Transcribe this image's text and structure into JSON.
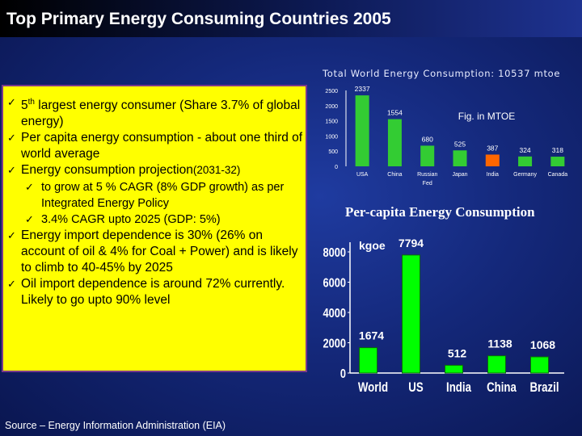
{
  "slide": {
    "title": "Top Primary Energy Consuming Countries 2005",
    "source": "Source – Energy Information Administration (EIA)"
  },
  "textbox": {
    "b1": {
      "pre": "5",
      "sup": "th",
      "post": " largest energy consumer (Share 3.7% of global energy)"
    },
    "b2": "Per capita energy consumption - about  one third of world average",
    "b3": {
      "pre": "Energy consumption projection",
      "paren": "(2031-32)"
    },
    "b3_sub1": "to grow at 5 % CAGR (8% GDP growth) as per Integrated Energy Policy",
    "b3_sub2": "3.4% CAGR upto 2025 (GDP: 5%)",
    "b4": "Energy import dependence is 30% (26% on account of oil & 4% for Coal + Power) and is likely to climb to 40-45% by 2025",
    "b5": "Oil import dependence is around 72% currently. Likely to go upto 90% level"
  },
  "chart_data": [
    {
      "type": "bar",
      "title": "Total World Energy Consumption: 10537 mtoe",
      "annotation": "Fig. in MTOE",
      "categories": [
        "USA",
        "China",
        "Russian Fed",
        "Japan",
        "India",
        "Germany",
        "Canada"
      ],
      "category_lines": [
        [
          "USA"
        ],
        [
          "China"
        ],
        [
          "Russian",
          "Fed"
        ],
        [
          "Japan"
        ],
        [
          "India"
        ],
        [
          "Germany"
        ],
        [
          "Canada"
        ]
      ],
      "values": [
        2337,
        1554,
        680,
        525,
        387,
        324,
        318
      ],
      "colors": [
        "#33cc33",
        "#33cc33",
        "#33cc33",
        "#33cc33",
        "#ff6600",
        "#33cc33",
        "#33cc33"
      ],
      "yticks": [
        0,
        500,
        1000,
        1500,
        2000,
        2500
      ],
      "ylim": [
        0,
        2500
      ]
    },
    {
      "type": "bar",
      "title": "Per-capita Energy Consumption",
      "ylabel": "kgoe",
      "categories": [
        "World",
        "US",
        "India",
        "China",
        "Brazil"
      ],
      "values": [
        1674,
        7794,
        512,
        1138,
        1068
      ],
      "colors": [
        "#00ff00",
        "#00ff00",
        "#00ff00",
        "#00ff00",
        "#00ff00"
      ],
      "yticks": [
        0,
        2000,
        4000,
        6000,
        8000
      ],
      "ylim": [
        0,
        8000
      ]
    }
  ]
}
